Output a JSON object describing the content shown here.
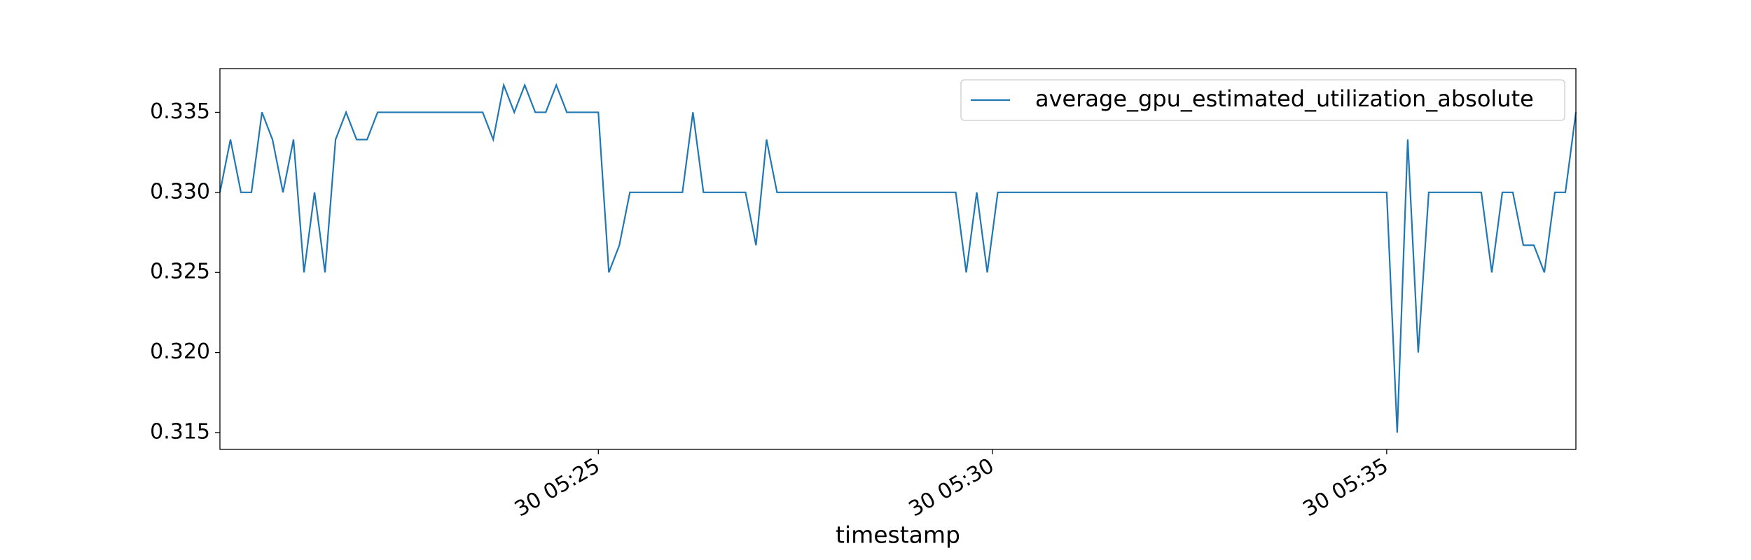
{
  "chart_data": {
    "type": "line",
    "xlabel": "timestamp",
    "x": [
      "30 05:20:12",
      "30 05:20:20",
      "30 05:20:28",
      "30 05:20:36",
      "30 05:20:44",
      "30 05:20:52",
      "30 05:21:00",
      "30 05:21:08",
      "30 05:21:16",
      "30 05:21:24",
      "30 05:21:32",
      "30 05:21:40",
      "30 05:21:48",
      "30 05:21:56",
      "30 05:22:04",
      "30 05:22:12",
      "30 05:22:20",
      "30 05:22:28",
      "30 05:22:36",
      "30 05:22:44",
      "30 05:22:52",
      "30 05:23:00",
      "30 05:23:08",
      "30 05:23:16",
      "30 05:23:24",
      "30 05:23:32",
      "30 05:23:40",
      "30 05:23:48",
      "30 05:23:56",
      "30 05:24:04",
      "30 05:24:12",
      "30 05:24:20",
      "30 05:24:28",
      "30 05:24:36",
      "30 05:24:44",
      "30 05:24:52",
      "30 05:25:00",
      "30 05:25:08",
      "30 05:25:16",
      "30 05:25:24",
      "30 05:25:32",
      "30 05:25:40",
      "30 05:25:48",
      "30 05:25:56",
      "30 05:26:04",
      "30 05:26:12",
      "30 05:26:20",
      "30 05:26:28",
      "30 05:26:36",
      "30 05:26:44",
      "30 05:26:52",
      "30 05:27:00",
      "30 05:27:08",
      "30 05:27:16",
      "30 05:27:24",
      "30 05:27:32",
      "30 05:27:40",
      "30 05:27:48",
      "30 05:27:56",
      "30 05:28:04",
      "30 05:28:12",
      "30 05:28:20",
      "30 05:28:28",
      "30 05:28:36",
      "30 05:28:44",
      "30 05:28:52",
      "30 05:29:00",
      "30 05:29:08",
      "30 05:29:16",
      "30 05:29:24",
      "30 05:29:32",
      "30 05:29:40",
      "30 05:29:48",
      "30 05:29:56",
      "30 05:30:04",
      "30 05:30:12",
      "30 05:30:20",
      "30 05:30:28",
      "30 05:30:36",
      "30 05:30:44",
      "30 05:30:52",
      "30 05:31:00",
      "30 05:31:08",
      "30 05:31:16",
      "30 05:31:24",
      "30 05:31:32",
      "30 05:31:40",
      "30 05:31:48",
      "30 05:31:56",
      "30 05:32:04",
      "30 05:32:12",
      "30 05:32:20",
      "30 05:32:28",
      "30 05:32:36",
      "30 05:32:44",
      "30 05:32:52",
      "30 05:33:00",
      "30 05:33:08",
      "30 05:33:16",
      "30 05:33:24",
      "30 05:33:32",
      "30 05:33:40",
      "30 05:33:48",
      "30 05:33:56",
      "30 05:34:04",
      "30 05:34:12",
      "30 05:34:20",
      "30 05:34:28",
      "30 05:34:36",
      "30 05:34:44",
      "30 05:34:52",
      "30 05:35:00",
      "30 05:35:08",
      "30 05:35:16",
      "30 05:35:24",
      "30 05:35:32",
      "30 05:35:40",
      "30 05:35:48",
      "30 05:35:56",
      "30 05:36:04",
      "30 05:36:12",
      "30 05:36:20",
      "30 05:36:28",
      "30 05:36:36",
      "30 05:36:44",
      "30 05:36:52",
      "30 05:37:00",
      "30 05:37:08",
      "30 05:37:16",
      "30 05:37:24"
    ],
    "series": [
      {
        "name": "average_gpu_estimated_utilization_absolute",
        "color": "#1f77b4",
        "values": [
          0.33,
          0.3333,
          0.33,
          0.33,
          0.335,
          0.3333,
          0.33,
          0.3333,
          0.325,
          0.33,
          0.325,
          0.3333,
          0.335,
          0.3333,
          0.3333,
          0.335,
          0.335,
          0.335,
          0.335,
          0.335,
          0.335,
          0.335,
          0.335,
          0.335,
          0.335,
          0.335,
          0.3333,
          0.3367,
          0.335,
          0.3367,
          0.335,
          0.335,
          0.3367,
          0.335,
          0.335,
          0.335,
          0.335,
          0.325,
          0.3267,
          0.33,
          0.33,
          0.33,
          0.33,
          0.33,
          0.33,
          0.335,
          0.33,
          0.33,
          0.33,
          0.33,
          0.33,
          0.3267,
          0.3333,
          0.33,
          0.33,
          0.33,
          0.33,
          0.33,
          0.33,
          0.33,
          0.33,
          0.33,
          0.33,
          0.33,
          0.33,
          0.33,
          0.33,
          0.33,
          0.33,
          0.33,
          0.33,
          0.325,
          0.33,
          0.325,
          0.33,
          0.33,
          0.33,
          0.33,
          0.33,
          0.33,
          0.33,
          0.33,
          0.33,
          0.33,
          0.33,
          0.33,
          0.33,
          0.33,
          0.33,
          0.33,
          0.33,
          0.33,
          0.33,
          0.33,
          0.33,
          0.33,
          0.33,
          0.33,
          0.33,
          0.33,
          0.33,
          0.33,
          0.33,
          0.33,
          0.33,
          0.33,
          0.33,
          0.33,
          0.33,
          0.33,
          0.33,
          0.33,
          0.315,
          0.3333,
          0.32,
          0.33,
          0.33,
          0.33,
          0.33,
          0.33,
          0.33,
          0.325,
          0.33,
          0.33,
          0.3267,
          0.3267,
          0.325,
          0.33,
          0.33,
          0.335
        ]
      }
    ],
    "xlim": [
      "30 05:20:12",
      "30 05:37:24"
    ],
    "xticks": [
      {
        "value": "30 05:25:00",
        "label": "30 05:25"
      },
      {
        "value": "30 05:30:00",
        "label": "30 05:30"
      },
      {
        "value": "30 05:35:00",
        "label": "30 05:35"
      }
    ],
    "ylim": [
      0.31395,
      0.33773
    ],
    "yticks": [
      0.315,
      {
        "value": 0.32,
        "label": "0.320"
      },
      0.325,
      {
        "value": 0.33,
        "label": "0.330"
      },
      0.335
    ],
    "legend": "upper right"
  }
}
